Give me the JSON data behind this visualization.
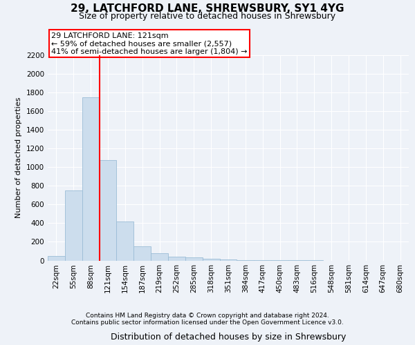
{
  "title1": "29, LATCHFORD LANE, SHREWSBURY, SY1 4YG",
  "title2": "Size of property relative to detached houses in Shrewsbury",
  "xlabel": "Distribution of detached houses by size in Shrewsbury",
  "ylabel": "Number of detached properties",
  "bin_labels": [
    "22sqm",
    "55sqm",
    "88sqm",
    "121sqm",
    "154sqm",
    "187sqm",
    "219sqm",
    "252sqm",
    "285sqm",
    "318sqm",
    "351sqm",
    "384sqm",
    "417sqm",
    "450sqm",
    "483sqm",
    "516sqm",
    "548sqm",
    "581sqm",
    "614sqm",
    "647sqm",
    "680sqm"
  ],
  "bar_heights": [
    50,
    750,
    1750,
    1075,
    420,
    155,
    75,
    40,
    30,
    20,
    10,
    5,
    3,
    2,
    1,
    1,
    0,
    0,
    0,
    0,
    0
  ],
  "bar_color": "#ccdded",
  "bar_edge_color": "#9bbcd6",
  "vline_index": 3,
  "vline_color": "red",
  "annotation_text": "29 LATCHFORD LANE: 121sqm\n← 59% of detached houses are smaller (2,557)\n41% of semi-detached houses are larger (1,804) →",
  "annotation_box_color": "white",
  "annotation_box_edge": "red",
  "ylim": [
    0,
    2200
  ],
  "yticks": [
    0,
    200,
    400,
    600,
    800,
    1000,
    1200,
    1400,
    1600,
    1800,
    2000,
    2200
  ],
  "footer1": "Contains HM Land Registry data © Crown copyright and database right 2024.",
  "footer2": "Contains public sector information licensed under the Open Government Licence v3.0.",
  "background_color": "#eef2f8",
  "plot_bg_color": "#eef2f8",
  "grid_color": "white",
  "title1_fontsize": 11,
  "title2_fontsize": 9,
  "ylabel_fontsize": 8,
  "xlabel_fontsize": 9,
  "tick_fontsize": 7.5,
  "footer_fontsize": 6.5,
  "annotation_fontsize": 8
}
